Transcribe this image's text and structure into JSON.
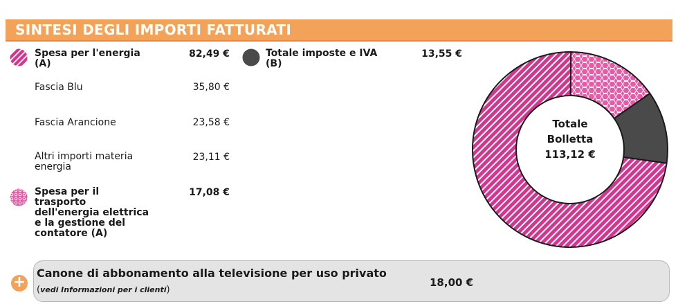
{
  "header": {
    "title": "SINTESI DEGLI IMPORTI FATTURATI"
  },
  "energia": {
    "label_line1": "Spesa per l'energia",
    "label_line2": "(A)",
    "amount": "82,49 €",
    "items": [
      {
        "label_line1": "Fascia Blu",
        "label_line2": "",
        "amount": "35,80 €"
      },
      {
        "label_line1": "Fascia Arancione",
        "label_line2": "",
        "amount": "23,58 €"
      },
      {
        "label_line1": "Altri importi materia",
        "label_line2": "energia",
        "amount": "23,11 €"
      }
    ]
  },
  "trasporto": {
    "label_lines": [
      "Spesa per il",
      "trasporto",
      "dell'energia elettrica",
      "e la gestione del",
      "contatore (A)"
    ],
    "amount": "17,08 €"
  },
  "imposte": {
    "label_line1": "Totale imposte e IVA",
    "label_line2": "(B)",
    "amount": "13,55 €"
  },
  "chart_data": {
    "type": "pie",
    "donut": true,
    "slices": [
      {
        "name": "Spesa per l'energia (A)",
        "value": 82.49,
        "color": "#d6358f",
        "pattern": "diagonal-stripes"
      },
      {
        "name": "Spesa per il trasporto dell'energia elettrica e la gestione del contatore (A)",
        "value": 17.08,
        "color": "#e85aa8",
        "pattern": "honeycomb"
      },
      {
        "name": "Totale imposte e IVA (B)",
        "value": 13.55,
        "color": "#4a4a4a",
        "pattern": "solid"
      }
    ],
    "center_line1": "Totale",
    "center_line2": "Bolletta",
    "center_value": "113,12 €"
  },
  "canone": {
    "title": "Canone di abbonamento alla televisione per uso privato",
    "note_open": "(",
    "note_italic": "vedi Informazioni per i clienti",
    "note_close": ")",
    "amount": "18,00 €"
  },
  "icons": {
    "plus": "+"
  }
}
